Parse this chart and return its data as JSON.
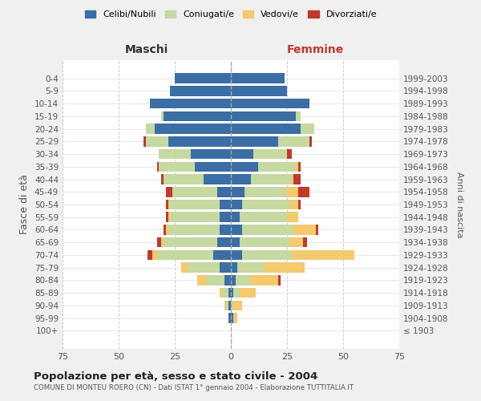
{
  "age_groups": [
    "100+",
    "95-99",
    "90-94",
    "85-89",
    "80-84",
    "75-79",
    "70-74",
    "65-69",
    "60-64",
    "55-59",
    "50-54",
    "45-49",
    "40-44",
    "35-39",
    "30-34",
    "25-29",
    "20-24",
    "15-19",
    "10-14",
    "5-9",
    "0-4"
  ],
  "birth_years": [
    "≤ 1903",
    "1904-1908",
    "1909-1913",
    "1914-1918",
    "1919-1923",
    "1924-1928",
    "1929-1933",
    "1934-1938",
    "1939-1943",
    "1944-1948",
    "1949-1953",
    "1954-1958",
    "1959-1963",
    "1964-1968",
    "1969-1973",
    "1974-1978",
    "1979-1983",
    "1984-1988",
    "1989-1993",
    "1994-1998",
    "1999-2003"
  ],
  "maschi": {
    "celibi": [
      0,
      1,
      1,
      1,
      3,
      5,
      8,
      6,
      5,
      5,
      5,
      6,
      12,
      16,
      18,
      28,
      34,
      30,
      36,
      27,
      25
    ],
    "coniugati": [
      0,
      0,
      1,
      3,
      8,
      14,
      25,
      24,
      23,
      22,
      22,
      20,
      18,
      16,
      14,
      10,
      4,
      1,
      0,
      0,
      0
    ],
    "vedovi": [
      0,
      0,
      1,
      1,
      4,
      3,
      2,
      1,
      1,
      1,
      1,
      0,
      0,
      0,
      0,
      0,
      0,
      0,
      0,
      0,
      0
    ],
    "divorziati": [
      0,
      0,
      0,
      0,
      0,
      0,
      2,
      2,
      1,
      1,
      1,
      3,
      1,
      1,
      0,
      1,
      0,
      0,
      0,
      0,
      0
    ]
  },
  "femmine": {
    "nubili": [
      0,
      1,
      0,
      1,
      2,
      3,
      5,
      4,
      5,
      4,
      5,
      6,
      9,
      12,
      10,
      21,
      31,
      29,
      35,
      25,
      24
    ],
    "coniugate": [
      0,
      0,
      1,
      3,
      7,
      12,
      22,
      22,
      23,
      21,
      21,
      19,
      18,
      17,
      15,
      14,
      6,
      2,
      0,
      0,
      0
    ],
    "vedove": [
      0,
      2,
      4,
      7,
      12,
      18,
      28,
      6,
      10,
      5,
      4,
      5,
      1,
      1,
      0,
      0,
      0,
      0,
      0,
      0,
      0
    ],
    "divorziate": [
      0,
      0,
      0,
      0,
      1,
      0,
      0,
      2,
      1,
      0,
      1,
      5,
      3,
      1,
      2,
      1,
      0,
      0,
      0,
      0,
      0
    ]
  },
  "colors": {
    "celibi_nubili": "#3a6ea5",
    "coniugati": "#c5d9a0",
    "vedovi": "#f5c96e",
    "divorziati": "#c0392b"
  },
  "xlim": 75,
  "title": "Popolazione per età, sesso e stato civile - 2004",
  "subtitle": "COMUNE DI MONTEU ROERO (CN) - Dati ISTAT 1° gennaio 2004 - Elaborazione TUTTITALIA.IT",
  "ylabel": "Fasce di età",
  "ylabel_right": "Anni di nascita",
  "xlabel_left": "Maschi",
  "xlabel_right": "Femmine",
  "bg_color": "#f0f0f0",
  "plot_bg_color": "#ffffff"
}
